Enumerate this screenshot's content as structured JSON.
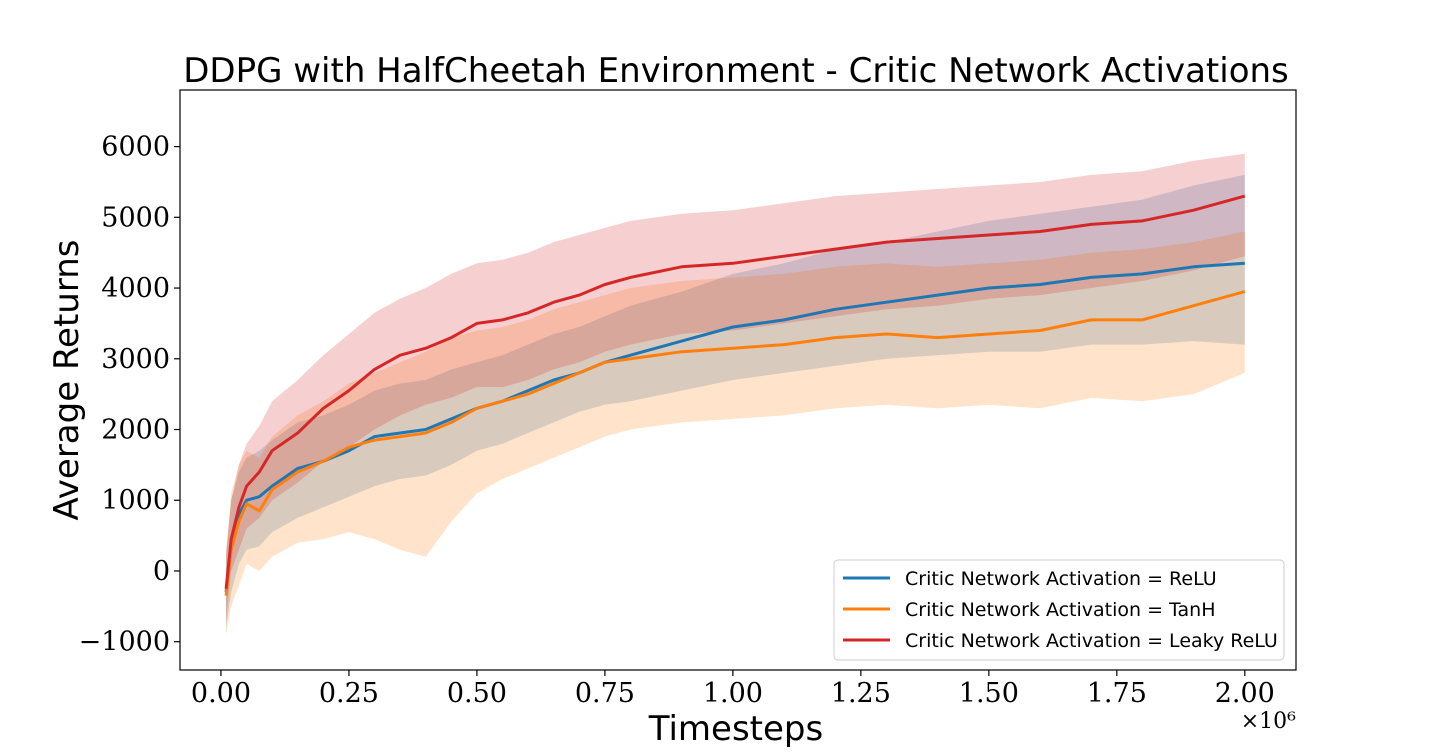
{
  "chart_data": {
    "type": "line",
    "title": "DDPG with HalfCheetah Environment - Critic Network Activations",
    "xlabel": "Timesteps",
    "ylabel": "Average Returns",
    "x_multiplier_label": "×10⁶",
    "xlim": [
      -0.08,
      2.1
    ],
    "ylim": [
      -1400,
      6800
    ],
    "xticks": [
      0.0,
      0.25,
      0.5,
      0.75,
      1.0,
      1.25,
      1.5,
      1.75,
      2.0
    ],
    "xtick_labels": [
      "0.00",
      "0.25",
      "0.50",
      "0.75",
      "1.00",
      "1.25",
      "1.50",
      "1.75",
      "2.00"
    ],
    "yticks": [
      -1000,
      0,
      1000,
      2000,
      3000,
      4000,
      5000,
      6000
    ],
    "ytick_labels": [
      "−1000",
      "0",
      "1000",
      "2000",
      "3000",
      "4000",
      "5000",
      "6000"
    ],
    "grid": false,
    "legend_position": "bottom-right",
    "x": [
      0.01,
      0.02,
      0.035,
      0.05,
      0.075,
      0.1,
      0.15,
      0.2,
      0.25,
      0.3,
      0.35,
      0.4,
      0.45,
      0.5,
      0.55,
      0.6,
      0.65,
      0.7,
      0.75,
      0.8,
      0.9,
      1.0,
      1.1,
      1.2,
      1.3,
      1.4,
      1.5,
      1.6,
      1.7,
      1.8,
      1.9,
      2.0
    ],
    "series": [
      {
        "name": "Critic Network Activation = ReLU",
        "color": "#1f77b4",
        "values": [
          -300,
          400,
          800,
          1000,
          1050,
          1200,
          1450,
          1550,
          1700,
          1900,
          1950,
          2000,
          2150,
          2300,
          2400,
          2550,
          2700,
          2800,
          2950,
          3050,
          3250,
          3450,
          3550,
          3700,
          3800,
          3900,
          4000,
          4050,
          4150,
          4200,
          4300,
          4350
        ],
        "lower": [
          -800,
          -300,
          100,
          300,
          350,
          550,
          750,
          900,
          1050,
          1200,
          1300,
          1350,
          1500,
          1700,
          1800,
          1950,
          2100,
          2250,
          2350,
          2400,
          2550,
          2700,
          2800,
          2900,
          3000,
          3050,
          3100,
          3100,
          3200,
          3200,
          3250,
          3200
        ],
        "upper": [
          200,
          1000,
          1400,
          1600,
          1700,
          1850,
          2100,
          2200,
          2350,
          2550,
          2650,
          2700,
          2850,
          2950,
          3050,
          3200,
          3350,
          3450,
          3600,
          3750,
          3950,
          4200,
          4350,
          4550,
          4650,
          4800,
          4950,
          5050,
          5150,
          5250,
          5450,
          5600
        ]
      },
      {
        "name": "Critic Network Activation = TanH",
        "color": "#ff7f0e",
        "values": [
          -350,
          300,
          700,
          950,
          850,
          1150,
          1400,
          1550,
          1750,
          1850,
          1900,
          1950,
          2100,
          2300,
          2400,
          2500,
          2650,
          2800,
          2950,
          3000,
          3100,
          3150,
          3200,
          3300,
          3350,
          3300,
          3350,
          3400,
          3550,
          3550,
          3750,
          3950
        ],
        "lower": [
          -900,
          -500,
          -200,
          100,
          0,
          200,
          400,
          450,
          550,
          450,
          300,
          200,
          700,
          1100,
          1300,
          1450,
          1600,
          1750,
          1900,
          2000,
          2100,
          2150,
          2200,
          2300,
          2350,
          2300,
          2350,
          2300,
          2450,
          2400,
          2500,
          2800
        ],
        "upper": [
          200,
          1100,
          1500,
          1700,
          1600,
          1900,
          2200,
          2400,
          2650,
          2800,
          2950,
          3100,
          3300,
          3400,
          3450,
          3550,
          3700,
          3800,
          3900,
          4000,
          4100,
          4150,
          4200,
          4300,
          4350,
          4300,
          4350,
          4400,
          4500,
          4550,
          4650,
          4800
        ]
      },
      {
        "name": "Critic Network Activation = Leaky ReLU",
        "color": "#d62728",
        "values": [
          -250,
          450,
          900,
          1200,
          1400,
          1700,
          1950,
          2300,
          2550,
          2850,
          3050,
          3150,
          3300,
          3500,
          3550,
          3650,
          3800,
          3900,
          4050,
          4150,
          4300,
          4350,
          4450,
          4550,
          4650,
          4700,
          4750,
          4800,
          4900,
          4950,
          5100,
          5300
        ],
        "lower": [
          -700,
          0,
          300,
          600,
          750,
          1000,
          1250,
          1550,
          1750,
          2000,
          2200,
          2350,
          2450,
          2600,
          2600,
          2700,
          2850,
          2950,
          3100,
          3200,
          3350,
          3400,
          3500,
          3600,
          3700,
          3750,
          3850,
          3900,
          4000,
          4100,
          4250,
          4450
        ],
        "upper": [
          300,
          1000,
          1500,
          1800,
          2050,
          2400,
          2700,
          3050,
          3350,
          3650,
          3850,
          4000,
          4200,
          4350,
          4400,
          4500,
          4650,
          4750,
          4850,
          4950,
          5050,
          5100,
          5200,
          5300,
          5350,
          5400,
          5450,
          5500,
          5600,
          5650,
          5800,
          5900
        ]
      }
    ]
  }
}
